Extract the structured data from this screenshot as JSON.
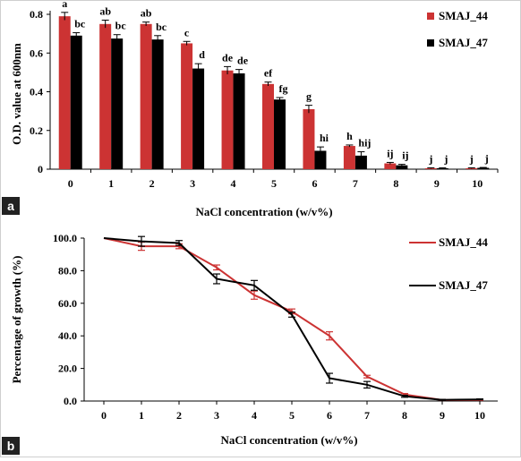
{
  "colors": {
    "SMAJ_44": "#cc3333",
    "SMAJ_47": "#000000",
    "panel_label_bg": "#222222"
  },
  "chart_data": [
    {
      "panel_label": "a",
      "type": "bar",
      "xlabel": "NaCl concentration (w/v%)",
      "ylabel": "O.D. value at 600nm",
      "ylim": [
        0,
        0.8
      ],
      "yticks": [
        "0",
        "0.2",
        "0.4",
        "0.6",
        "0.8"
      ],
      "categories": [
        "0",
        "1",
        "2",
        "3",
        "4",
        "5",
        "6",
        "7",
        "8",
        "9",
        "10"
      ],
      "legend_position": "top-right",
      "series": [
        {
          "name": "SMAJ_44",
          "values": [
            0.79,
            0.75,
            0.75,
            0.65,
            0.51,
            0.44,
            0.31,
            0.12,
            0.03,
            0.005,
            0.005
          ],
          "errors": [
            0.02,
            0.02,
            0.01,
            0.01,
            0.02,
            0.01,
            0.02,
            0.005,
            0.005,
            0.002,
            0.002
          ],
          "labels": [
            "a",
            "ab",
            "ab",
            "c",
            "de",
            "ef",
            "g",
            "h",
            "ij",
            "j",
            "j"
          ]
        },
        {
          "name": "SMAJ_47",
          "values": [
            0.69,
            0.675,
            0.67,
            0.52,
            0.495,
            0.36,
            0.095,
            0.07,
            0.02,
            0.005,
            0.007
          ],
          "errors": [
            0.015,
            0.02,
            0.02,
            0.025,
            0.02,
            0.01,
            0.02,
            0.02,
            0.005,
            0.002,
            0.002
          ],
          "labels": [
            "bc",
            "bc",
            "bc",
            "d",
            "de",
            "fg",
            "hi",
            "hij",
            "ij",
            "j",
            "j"
          ]
        }
      ]
    },
    {
      "panel_label": "b",
      "type": "line",
      "xlabel": "NaCl concentration (w/v%)",
      "ylabel": "Percentage of growth (%)",
      "ylim": [
        0,
        100
      ],
      "yticks": [
        "0.0",
        "20.0",
        "40.0",
        "60.0",
        "80.0",
        "100.0"
      ],
      "x": [
        "0",
        "1",
        "2",
        "3",
        "4",
        "5",
        "6",
        "7",
        "8",
        "9",
        "10"
      ],
      "legend_position": "top-right",
      "series": [
        {
          "name": "SMAJ_44",
          "values": [
            100,
            95,
            95,
            82,
            65,
            55,
            40,
            15,
            4,
            0.6,
            0.6
          ],
          "errors": [
            0,
            2.5,
            1.5,
            1.5,
            2.5,
            1.5,
            2.5,
            0.8,
            0.6,
            0.3,
            0.3
          ]
        },
        {
          "name": "SMAJ_47",
          "values": [
            100,
            98,
            97,
            75,
            71,
            53,
            14,
            10,
            2.9,
            0.7,
            1
          ],
          "errors": [
            0,
            3,
            1.5,
            3,
            3,
            1.5,
            3,
            2,
            0.6,
            0.3,
            0.3
          ]
        }
      ]
    }
  ]
}
